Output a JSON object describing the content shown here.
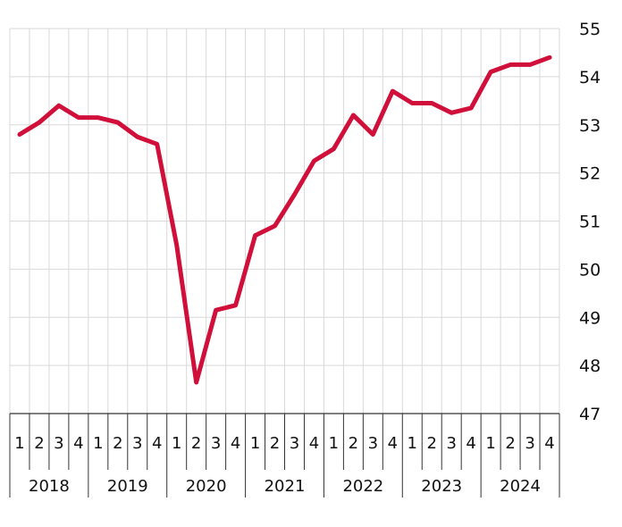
{
  "chart_data": {
    "type": "line",
    "title": "",
    "xlabel": "",
    "ylabel": "",
    "ylim": [
      47,
      55
    ],
    "y_ticks": [
      47,
      48,
      49,
      50,
      51,
      52,
      53,
      54,
      55
    ],
    "y_axis_side": "right",
    "grid": true,
    "colors": {
      "line": "#d0103a",
      "grid": "#d9d9d9",
      "axis": "#333333"
    },
    "years": [
      "2018",
      "2019",
      "2020",
      "2021",
      "2022",
      "2023",
      "2024"
    ],
    "quarter_labels": [
      "1",
      "2",
      "3",
      "4"
    ],
    "series": [
      {
        "values": [
          52.8,
          53.05,
          53.4,
          53.15,
          53.15,
          53.05,
          52.75,
          52.6,
          50.5,
          47.65,
          49.15,
          49.25,
          50.7,
          50.9,
          51.55,
          52.25,
          52.5,
          53.2,
          52.8,
          53.7,
          53.45,
          53.45,
          53.25,
          53.35,
          54.1,
          54.25,
          54.25,
          54.4
        ]
      }
    ]
  }
}
